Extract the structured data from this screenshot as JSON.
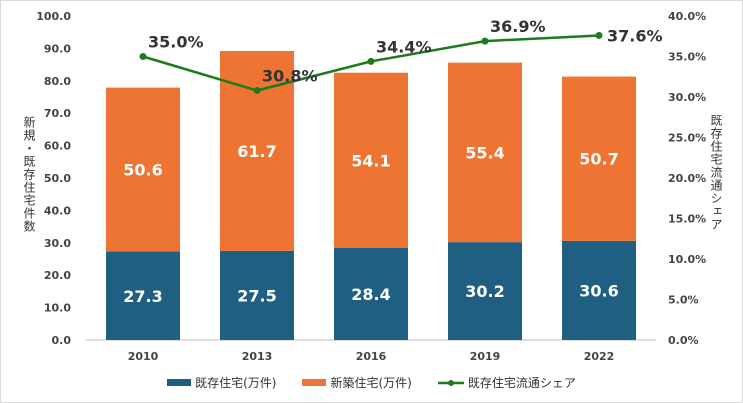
{
  "chart_data": {
    "type": "bar",
    "categories": [
      "2010",
      "2013",
      "2016",
      "2019",
      "2022"
    ],
    "series": [
      {
        "name": "既存住宅(万件)",
        "values": [
          27.3,
          27.5,
          28.4,
          30.2,
          30.6
        ],
        "color": "#1f5f82",
        "axis": "left",
        "kind": "stacked-bar"
      },
      {
        "name": "新築住宅(万件)",
        "values": [
          50.6,
          61.7,
          54.1,
          55.4,
          50.7
        ],
        "color": "#ed7432",
        "axis": "left",
        "kind": "stacked-bar"
      },
      {
        "name": "既存住宅流通シェア",
        "values": [
          35.0,
          30.8,
          34.4,
          36.9,
          37.6
        ],
        "color": "#1e7a1e",
        "axis": "right",
        "kind": "line"
      }
    ],
    "ylabel": "新規・既存住宅件数",
    "y2label": "既存住宅流通シェア",
    "ylim": [
      0,
      100
    ],
    "yticks": [
      "0.0",
      "10.0",
      "20.0",
      "30.0",
      "40.0",
      "50.0",
      "60.0",
      "70.0",
      "80.0",
      "90.0",
      "100.0"
    ],
    "y2lim": [
      0,
      40
    ],
    "y2ticks": [
      "0.0%",
      "5.0%",
      "10.0%",
      "15.0%",
      "20.0%",
      "25.0%",
      "30.0%",
      "35.0%",
      "40.0%"
    ],
    "line_labels": [
      "35.0%",
      "30.8%",
      "34.4%",
      "36.9%",
      "37.6%"
    ],
    "legend": "bottom"
  }
}
